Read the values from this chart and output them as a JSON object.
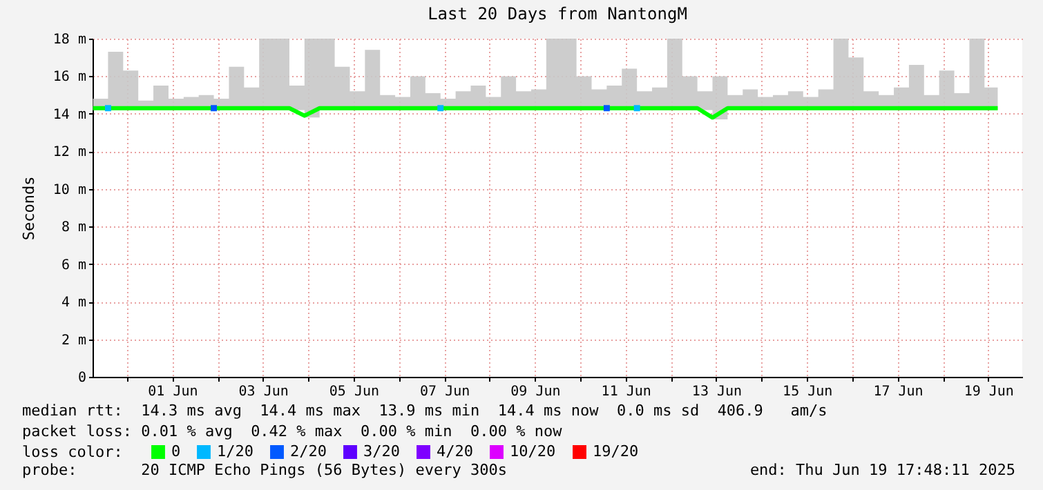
{
  "chart_data": {
    "type": "line",
    "title": "Last 20 Days from NantongM",
    "ylabel": "Seconds",
    "legend_title": "loss color:",
    "legend": "bottom",
    "grid": true,
    "marker": "none",
    "line_style": "solid",
    "x": [
      "2025-05-30T18:00",
      "2025-05-31T02:00",
      "2025-05-31T10:00",
      "2025-05-31T18:00",
      "2025-06-01T02:00",
      "2025-06-01T10:00",
      "2025-06-01T18:00",
      "2025-06-02T02:00",
      "2025-06-02T10:00",
      "2025-06-02T18:00",
      "2025-06-03T02:00",
      "2025-06-03T10:00",
      "2025-06-03T18:00",
      "2025-06-04T02:00",
      "2025-06-04T10:00",
      "2025-06-04T18:00",
      "2025-06-05T02:00",
      "2025-06-05T10:00",
      "2025-06-05T18:00",
      "2025-06-06T02:00",
      "2025-06-06T10:00",
      "2025-06-06T18:00",
      "2025-06-07T02:00",
      "2025-06-07T10:00",
      "2025-06-07T18:00",
      "2025-06-08T02:00",
      "2025-06-08T10:00",
      "2025-06-08T18:00",
      "2025-06-09T02:00",
      "2025-06-09T10:00",
      "2025-06-09T18:00",
      "2025-06-10T02:00",
      "2025-06-10T10:00",
      "2025-06-10T18:00",
      "2025-06-11T02:00",
      "2025-06-11T10:00",
      "2025-06-11T18:00",
      "2025-06-12T02:00",
      "2025-06-12T10:00",
      "2025-06-12T18:00",
      "2025-06-13T02:00",
      "2025-06-13T10:00",
      "2025-06-13T18:00",
      "2025-06-14T02:00",
      "2025-06-14T10:00",
      "2025-06-14T18:00",
      "2025-06-15T02:00",
      "2025-06-15T10:00",
      "2025-06-15T18:00",
      "2025-06-16T02:00",
      "2025-06-16T10:00",
      "2025-06-16T18:00",
      "2025-06-17T02:00",
      "2025-06-17T10:00",
      "2025-06-17T18:00",
      "2025-06-18T02:00",
      "2025-06-18T10:00",
      "2025-06-18T18:00",
      "2025-06-19T02:00",
      "2025-06-19T10:00",
      "2025-06-19T17:00"
    ],
    "series": [
      {
        "name": "0",
        "color": "#00ff00",
        "values": [
          14.3,
          14.3,
          14.3,
          14.3,
          14.3,
          14.3,
          14.3,
          14.3,
          14.3,
          14.3,
          14.3,
          14.3,
          14.3,
          14.3,
          13.9,
          14.3,
          14.3,
          14.3,
          14.3,
          14.3,
          14.3,
          14.3,
          14.3,
          14.3,
          14.3,
          14.3,
          14.3,
          14.3,
          14.3,
          14.3,
          14.3,
          14.3,
          14.3,
          14.3,
          14.3,
          14.3,
          14.3,
          14.3,
          14.3,
          14.3,
          14.3,
          13.8,
          14.3,
          14.3,
          14.3,
          14.3,
          14.3,
          14.3,
          14.3,
          14.3,
          14.3,
          14.3,
          14.3,
          14.3,
          14.3,
          14.3,
          14.3,
          14.3,
          14.3,
          14.3,
          14.3
        ],
        "lower": [
          14.2,
          14.2,
          14.2,
          14.2,
          14.2,
          14.2,
          14.2,
          14.2,
          14.2,
          14.2,
          14.2,
          14.2,
          14.2,
          14.2,
          13.8,
          14.2,
          14.2,
          14.2,
          14.2,
          14.2,
          14.2,
          14.2,
          14.2,
          14.2,
          14.2,
          14.2,
          14.2,
          14.2,
          14.2,
          14.2,
          14.2,
          14.2,
          14.2,
          14.2,
          14.2,
          14.2,
          14.2,
          14.2,
          14.2,
          14.2,
          14.2,
          13.7,
          14.2,
          14.2,
          14.2,
          14.2,
          14.2,
          14.2,
          14.2,
          14.2,
          14.2,
          14.2,
          14.2,
          14.2,
          14.2,
          14.2,
          14.2,
          14.2,
          14.2,
          14.2,
          14.2
        ],
        "upper": [
          14.8,
          17.3,
          16.3,
          14.7,
          15.5,
          14.8,
          14.9,
          15.0,
          14.8,
          16.5,
          15.4,
          18.0,
          18.0,
          15.5,
          18.0,
          18.0,
          16.5,
          15.2,
          17.4,
          15.0,
          14.9,
          16.0,
          15.1,
          14.8,
          15.2,
          15.5,
          14.9,
          16.0,
          15.2,
          15.3,
          18.0,
          18.0,
          16.0,
          15.3,
          15.5,
          16.4,
          15.2,
          15.4,
          18.0,
          16.0,
          15.2,
          16.0,
          15.0,
          15.3,
          14.9,
          15.0,
          15.2,
          14.9,
          15.3,
          18.0,
          17.0,
          15.2,
          15.0,
          15.4,
          16.6,
          15.0,
          16.3,
          15.1,
          18.0,
          15.4,
          18.0
        ]
      },
      {
        "name": "1/20",
        "color": "#00b8ff",
        "type": "scatter",
        "marker": "square",
        "x": [
          "2025-05-31T02:00",
          "2025-06-07T10:00",
          "2025-06-11T18:00"
        ],
        "values": [
          14.3,
          14.3,
          14.3
        ]
      },
      {
        "name": "2/20",
        "color": "#0059ff",
        "type": "scatter",
        "marker": "square",
        "x": [
          "2025-06-02T10:00",
          "2025-06-11T02:00"
        ],
        "values": [
          14.3,
          14.3
        ]
      },
      {
        "name": "3/20",
        "color": "#5e00ff",
        "type": "scatter",
        "values": [
          null,
          null,
          null,
          null,
          null,
          null,
          null,
          null,
          null,
          null,
          null,
          null,
          null,
          null,
          null,
          null,
          null,
          null,
          null,
          null,
          null,
          null,
          null,
          null,
          null,
          null,
          null,
          null,
          null,
          null,
          null,
          null,
          null,
          null,
          null,
          null,
          null,
          null,
          null,
          null,
          null,
          null,
          null,
          null,
          null,
          null,
          null,
          null,
          null,
          null,
          null,
          null,
          null,
          null,
          null,
          null,
          null,
          null,
          null,
          null,
          null
        ]
      },
      {
        "name": "4/20",
        "color": "#7e00ff",
        "type": "scatter",
        "values": [
          null,
          null,
          null,
          null,
          null,
          null,
          null,
          null,
          null,
          null,
          null,
          null,
          null,
          null,
          null,
          null,
          null,
          null,
          null,
          null,
          null,
          null,
          null,
          null,
          null,
          null,
          null,
          null,
          null,
          null,
          null,
          null,
          null,
          null,
          null,
          null,
          null,
          null,
          null,
          null,
          null,
          null,
          null,
          null,
          null,
          null,
          null,
          null,
          null,
          null,
          null,
          null,
          null,
          null,
          null,
          null,
          null,
          null,
          null,
          null,
          null
        ]
      },
      {
        "name": "10/20",
        "color": "#dd00ff",
        "type": "scatter",
        "values": [
          null,
          null,
          null,
          null,
          null,
          null,
          null,
          null,
          null,
          null,
          null,
          null,
          null,
          null,
          null,
          null,
          null,
          null,
          null,
          null,
          null,
          null,
          null,
          null,
          null,
          null,
          null,
          null,
          null,
          null,
          null,
          null,
          null,
          null,
          null,
          null,
          null,
          null,
          null,
          null,
          null,
          null,
          null,
          null,
          null,
          null,
          null,
          null,
          null,
          null,
          null,
          null,
          null,
          null,
          null,
          null,
          null,
          null,
          null,
          null,
          null
        ]
      },
      {
        "name": "19/20",
        "color": "#ff0000",
        "type": "scatter",
        "values": [
          null,
          null,
          null,
          null,
          null,
          null,
          null,
          null,
          null,
          null,
          null,
          null,
          null,
          null,
          null,
          null,
          null,
          null,
          null,
          null,
          null,
          null,
          null,
          null,
          null,
          null,
          null,
          null,
          null,
          null,
          null,
          null,
          null,
          null,
          null,
          null,
          null,
          null,
          null,
          null,
          null,
          null,
          null,
          null,
          null,
          null,
          null,
          null,
          null,
          null,
          null,
          null,
          null,
          null,
          null,
          null,
          null,
          null,
          null,
          null,
          null
        ]
      }
    ],
    "xlim": [
      "2025-05-30T17:48",
      "2025-06-20T06:00"
    ],
    "xticks": [
      {
        "value": "2025-05-31T12:00",
        "label": null
      },
      {
        "value": "2025-06-01T12:00",
        "label": "01 Jun"
      },
      {
        "value": "2025-06-02T12:00",
        "label": null
      },
      {
        "value": "2025-06-03T12:00",
        "label": "03 Jun"
      },
      {
        "value": "2025-06-04T12:00",
        "label": null
      },
      {
        "value": "2025-06-05T12:00",
        "label": "05 Jun"
      },
      {
        "value": "2025-06-06T12:00",
        "label": null
      },
      {
        "value": "2025-06-07T12:00",
        "label": "07 Jun"
      },
      {
        "value": "2025-06-08T12:00",
        "label": null
      },
      {
        "value": "2025-06-09T12:00",
        "label": "09 Jun"
      },
      {
        "value": "2025-06-10T12:00",
        "label": null
      },
      {
        "value": "2025-06-11T12:00",
        "label": "11 Jun"
      },
      {
        "value": "2025-06-12T12:00",
        "label": null
      },
      {
        "value": "2025-06-13T12:00",
        "label": "13 Jun"
      },
      {
        "value": "2025-06-14T12:00",
        "label": null
      },
      {
        "value": "2025-06-15T12:00",
        "label": "15 Jun"
      },
      {
        "value": "2025-06-16T12:00",
        "label": null
      },
      {
        "value": "2025-06-17T12:00",
        "label": "17 Jun"
      },
      {
        "value": "2025-06-18T12:00",
        "label": null
      },
      {
        "value": "2025-06-19T12:00",
        "label": "19 Jun"
      }
    ],
    "ylim": [
      0,
      18
    ],
    "yticks": [
      0,
      {
        "value": 2,
        "label": "2 m"
      },
      {
        "value": 4,
        "label": "4 m"
      },
      {
        "value": 6,
        "label": "6 m"
      },
      {
        "value": 8,
        "label": "8 m"
      },
      {
        "value": 10,
        "label": "10 m"
      },
      {
        "value": 12,
        "label": "12 m"
      },
      {
        "value": 14,
        "label": "14 m"
      },
      {
        "value": 16,
        "label": "16 m"
      },
      {
        "value": 18,
        "label": "18 m"
      }
    ],
    "annotations": [
      "median rtt:  14.3 ms avg  14.4 ms max  13.9 ms min  14.4 ms now  0.0 ms sd  406.9   am/s",
      "packet loss: 0.01 % avg  0.42 % max  0.00 % min  0.00 % now",
      "probe:       20 ICMP Echo Pings (56 Bytes) every 300s",
      "end: Thu Jun 19 17:48:11 2025"
    ]
  }
}
